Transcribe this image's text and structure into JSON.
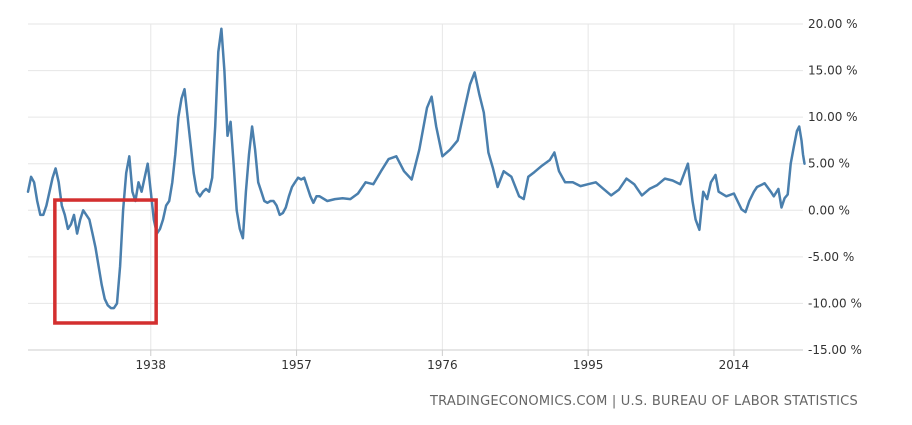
{
  "chart_data": {
    "type": "line",
    "title": "",
    "xlabel": "",
    "ylabel": "",
    "xlim": [
      1922,
      2023
    ],
    "ylim": [
      -15,
      20
    ],
    "x_ticks": [
      {
        "value": 1938,
        "label": "1938"
      },
      {
        "value": 1957,
        "label": "1957"
      },
      {
        "value": 1976,
        "label": "1976"
      },
      {
        "value": 1995,
        "label": "1995"
      },
      {
        "value": 2014,
        "label": "2014"
      }
    ],
    "y_ticks": [
      {
        "value": 20,
        "label": "20.00 %"
      },
      {
        "value": 15,
        "label": "15.00 %"
      },
      {
        "value": 10,
        "label": "10.00 %"
      },
      {
        "value": 5,
        "label": "5.00 %"
      },
      {
        "value": 0,
        "label": "0.00 %"
      },
      {
        "value": -5,
        "label": "-5.00 %"
      },
      {
        "value": -10,
        "label": "-10.00 %"
      },
      {
        "value": -15,
        "label": "-15.00 %"
      }
    ],
    "grid": true,
    "series": [
      {
        "color": "#4a7fad",
        "points": [
          [
            1922.0,
            2.0
          ],
          [
            1922.4,
            3.6
          ],
          [
            1922.8,
            3.0
          ],
          [
            1923.2,
            1.0
          ],
          [
            1923.6,
            -0.5
          ],
          [
            1924.0,
            -0.5
          ],
          [
            1924.4,
            0.5
          ],
          [
            1924.8,
            2.0
          ],
          [
            1925.2,
            3.5
          ],
          [
            1925.6,
            4.5
          ],
          [
            1926.0,
            3.0
          ],
          [
            1926.4,
            0.5
          ],
          [
            1926.8,
            -0.5
          ],
          [
            1927.2,
            -2.0
          ],
          [
            1927.6,
            -1.5
          ],
          [
            1928.0,
            -0.5
          ],
          [
            1928.4,
            -2.5
          ],
          [
            1928.8,
            -1.0
          ],
          [
            1929.2,
            0.0
          ],
          [
            1929.6,
            -0.5
          ],
          [
            1930.0,
            -1.0
          ],
          [
            1930.4,
            -2.5
          ],
          [
            1930.8,
            -4.0
          ],
          [
            1931.2,
            -6.0
          ],
          [
            1931.6,
            -8.0
          ],
          [
            1932.0,
            -9.5
          ],
          [
            1932.4,
            -10.2
          ],
          [
            1932.8,
            -10.5
          ],
          [
            1933.2,
            -10.5
          ],
          [
            1933.6,
            -10.0
          ],
          [
            1934.0,
            -6.0
          ],
          [
            1934.4,
            0.0
          ],
          [
            1934.8,
            4.0
          ],
          [
            1935.2,
            5.8
          ],
          [
            1935.6,
            2.0
          ],
          [
            1936.0,
            1.0
          ],
          [
            1936.4,
            3.0
          ],
          [
            1936.8,
            2.0
          ],
          [
            1937.2,
            3.5
          ],
          [
            1937.6,
            5.0
          ],
          [
            1938.0,
            2.0
          ],
          [
            1938.4,
            -1.0
          ],
          [
            1938.8,
            -2.5
          ],
          [
            1939.2,
            -2.0
          ],
          [
            1939.6,
            -1.0
          ],
          [
            1940.0,
            0.5
          ],
          [
            1940.4,
            1.0
          ],
          [
            1940.8,
            3.0
          ],
          [
            1941.2,
            6.0
          ],
          [
            1941.6,
            10.0
          ],
          [
            1942.0,
            12.0
          ],
          [
            1942.4,
            13.0
          ],
          [
            1942.8,
            10.0
          ],
          [
            1943.2,
            7.0
          ],
          [
            1943.6,
            4.0
          ],
          [
            1944.0,
            2.0
          ],
          [
            1944.4,
            1.5
          ],
          [
            1944.8,
            2.0
          ],
          [
            1945.2,
            2.3
          ],
          [
            1945.6,
            2.0
          ],
          [
            1946.0,
            3.5
          ],
          [
            1946.4,
            9.0
          ],
          [
            1946.8,
            17.0
          ],
          [
            1947.2,
            19.5
          ],
          [
            1947.6,
            15.0
          ],
          [
            1948.0,
            8.0
          ],
          [
            1948.4,
            9.5
          ],
          [
            1948.8,
            5.0
          ],
          [
            1949.2,
            0.0
          ],
          [
            1949.6,
            -2.0
          ],
          [
            1950.0,
            -3.0
          ],
          [
            1950.4,
            2.0
          ],
          [
            1950.8,
            6.0
          ],
          [
            1951.2,
            9.0
          ],
          [
            1951.6,
            6.5
          ],
          [
            1952.0,
            3.0
          ],
          [
            1952.4,
            2.0
          ],
          [
            1952.8,
            1.0
          ],
          [
            1953.2,
            0.8
          ],
          [
            1953.6,
            1.0
          ],
          [
            1954.0,
            1.0
          ],
          [
            1954.4,
            0.5
          ],
          [
            1954.8,
            -0.5
          ],
          [
            1955.2,
            -0.3
          ],
          [
            1955.6,
            0.3
          ],
          [
            1956.0,
            1.5
          ],
          [
            1956.4,
            2.5
          ],
          [
            1956.8,
            3.0
          ],
          [
            1957.2,
            3.5
          ],
          [
            1957.6,
            3.3
          ],
          [
            1958.0,
            3.5
          ],
          [
            1958.4,
            2.5
          ],
          [
            1958.8,
            1.5
          ],
          [
            1959.2,
            0.8
          ],
          [
            1959.6,
            1.5
          ],
          [
            1960.0,
            1.5
          ],
          [
            1961.0,
            1.0
          ],
          [
            1962.0,
            1.2
          ],
          [
            1963.0,
            1.3
          ],
          [
            1964.0,
            1.2
          ],
          [
            1965.0,
            1.8
          ],
          [
            1966.0,
            3.0
          ],
          [
            1967.0,
            2.8
          ],
          [
            1968.0,
            4.2
          ],
          [
            1969.0,
            5.5
          ],
          [
            1970.0,
            5.8
          ],
          [
            1971.0,
            4.2
          ],
          [
            1972.0,
            3.3
          ],
          [
            1973.0,
            6.5
          ],
          [
            1974.0,
            11.0
          ],
          [
            1974.6,
            12.2
          ],
          [
            1975.2,
            9.0
          ],
          [
            1976.0,
            5.8
          ],
          [
            1977.0,
            6.5
          ],
          [
            1978.0,
            7.5
          ],
          [
            1979.0,
            11.3
          ],
          [
            1979.6,
            13.5
          ],
          [
            1980.2,
            14.8
          ],
          [
            1980.8,
            12.5
          ],
          [
            1981.4,
            10.5
          ],
          [
            1982.0,
            6.2
          ],
          [
            1982.6,
            4.5
          ],
          [
            1983.2,
            2.5
          ],
          [
            1984.0,
            4.2
          ],
          [
            1985.0,
            3.6
          ],
          [
            1986.0,
            1.5
          ],
          [
            1986.6,
            1.2
          ],
          [
            1987.2,
            3.6
          ],
          [
            1988.0,
            4.1
          ],
          [
            1989.0,
            4.8
          ],
          [
            1990.0,
            5.4
          ],
          [
            1990.6,
            6.2
          ],
          [
            1991.2,
            4.2
          ],
          [
            1992.0,
            3.0
          ],
          [
            1993.0,
            3.0
          ],
          [
            1994.0,
            2.6
          ],
          [
            1995.0,
            2.8
          ],
          [
            1996.0,
            3.0
          ],
          [
            1997.0,
            2.3
          ],
          [
            1998.0,
            1.6
          ],
          [
            1999.0,
            2.2
          ],
          [
            2000.0,
            3.4
          ],
          [
            2001.0,
            2.8
          ],
          [
            2002.0,
            1.6
          ],
          [
            2003.0,
            2.3
          ],
          [
            2004.0,
            2.7
          ],
          [
            2005.0,
            3.4
          ],
          [
            2006.0,
            3.2
          ],
          [
            2007.0,
            2.8
          ],
          [
            2008.0,
            5.0
          ],
          [
            2008.6,
            1.0
          ],
          [
            2009.0,
            -1.0
          ],
          [
            2009.5,
            -2.1
          ],
          [
            2010.0,
            2.0
          ],
          [
            2010.5,
            1.2
          ],
          [
            2011.0,
            3.0
          ],
          [
            2011.6,
            3.8
          ],
          [
            2012.0,
            2.0
          ],
          [
            2013.0,
            1.5
          ],
          [
            2014.0,
            1.8
          ],
          [
            2015.0,
            0.1
          ],
          [
            2015.5,
            -0.2
          ],
          [
            2016.0,
            1.0
          ],
          [
            2016.6,
            2.0
          ],
          [
            2017.0,
            2.5
          ],
          [
            2018.0,
            2.9
          ],
          [
            2018.8,
            2.0
          ],
          [
            2019.2,
            1.5
          ],
          [
            2019.8,
            2.3
          ],
          [
            2020.2,
            0.3
          ],
          [
            2020.6,
            1.3
          ],
          [
            2021.0,
            1.7
          ],
          [
            2021.4,
            5.0
          ],
          [
            2021.8,
            6.8
          ],
          [
            2022.2,
            8.5
          ],
          [
            2022.5,
            9.0
          ],
          [
            2022.8,
            7.5
          ],
          [
            2023.0,
            6.0
          ],
          [
            2023.2,
            5.0
          ]
        ]
      }
    ],
    "annotations": [
      {
        "type": "rectangle",
        "color": "#d32f2f",
        "x_range": [
          1925.5,
          1938.7
        ],
        "y_range": [
          -12.1,
          1.1
        ]
      }
    ],
    "source": "TRADINGECONOMICS.COM | U.S. BUREAU OF LABOR STATISTICS"
  }
}
